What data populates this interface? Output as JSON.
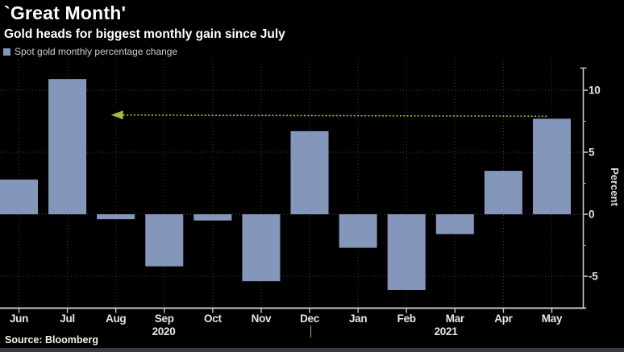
{
  "header": {
    "title": "`Great Month'",
    "subtitle": "Gold heads for biggest monthly gain since July"
  },
  "legend": {
    "label": "Spot gold monthly percentage change",
    "swatch_color": "#8497ba"
  },
  "chart_data": {
    "type": "bar",
    "categories": [
      "Jun",
      "Jul",
      "Aug",
      "Sep",
      "Oct",
      "Nov",
      "Dec",
      "Jan",
      "Feb",
      "Mar",
      "Apr",
      "May"
    ],
    "values": [
      2.8,
      10.9,
      -0.4,
      -4.2,
      -0.5,
      -5.4,
      6.7,
      -2.7,
      -6.1,
      -1.6,
      3.5,
      7.7
    ],
    "year_labels": [
      "2020",
      "2021"
    ],
    "title": "`Great Month'",
    "xlabel": "",
    "ylabel": "Percent",
    "ylim": [
      -7.6,
      12.4
    ],
    "yticks_major": [
      10,
      5,
      0,
      -5
    ],
    "yticks_minor": [
      7.5,
      2.5,
      -2.5
    ],
    "grid": "dotted horizontal and vertical",
    "legend_position": "top-left",
    "axis_side": "right",
    "bar_color": "#8497ba",
    "annotation": {
      "type": "arrow",
      "y": 8.0,
      "from_category": "May",
      "to_category": "Aug",
      "color": "#a4bf3b",
      "style": "dotted",
      "meaning": "May gain is the biggest since July"
    }
  },
  "source": {
    "label": "Source: Bloomberg"
  }
}
